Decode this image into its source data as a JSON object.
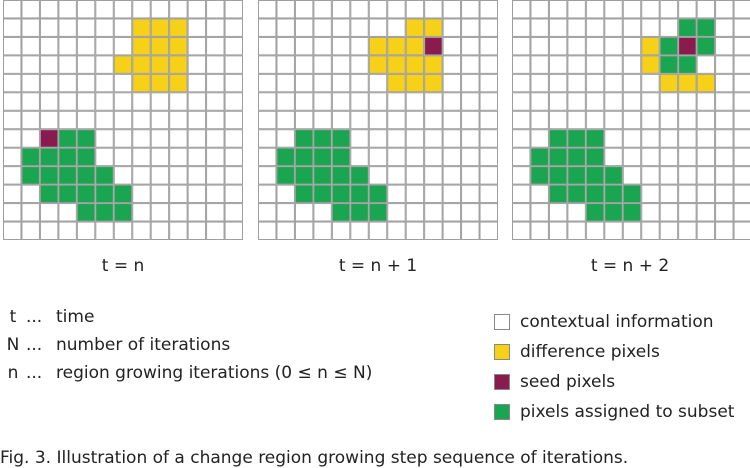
{
  "colors": {
    "empty": "#ffffff",
    "difference": "#f7d117",
    "seed": "#8a1b4f",
    "subset": "#1aa651",
    "grid_line": "#9e9e9e"
  },
  "grid": {
    "rows": 13,
    "cols": 13
  },
  "panels": [
    {
      "caption": "t = n",
      "difference": [
        [
          1,
          7
        ],
        [
          1,
          8
        ],
        [
          2,
          7
        ],
        [
          2,
          8
        ],
        [
          3,
          7
        ],
        [
          3,
          8
        ],
        [
          4,
          8
        ],
        [
          4,
          9
        ],
        [
          2,
          9
        ],
        [
          1,
          9
        ],
        [
          3,
          9
        ],
        [
          3,
          6
        ],
        [
          4,
          7
        ]
      ],
      "seed": [
        [
          7,
          2
        ]
      ],
      "subset": [
        [
          7,
          3
        ],
        [
          7,
          4
        ],
        [
          8,
          1
        ],
        [
          8,
          2
        ],
        [
          8,
          3
        ],
        [
          8,
          4
        ],
        [
          9,
          1
        ],
        [
          9,
          2
        ],
        [
          9,
          3
        ],
        [
          9,
          4
        ],
        [
          9,
          5
        ],
        [
          10,
          2
        ],
        [
          10,
          3
        ],
        [
          10,
          4
        ],
        [
          10,
          5
        ],
        [
          10,
          6
        ],
        [
          11,
          4
        ],
        [
          11,
          5
        ],
        [
          11,
          6
        ]
      ]
    },
    {
      "caption": "t = n + 1",
      "difference": [
        [
          1,
          9
        ],
        [
          2,
          7
        ],
        [
          2,
          8
        ],
        [
          3,
          7
        ],
        [
          3,
          8
        ],
        [
          3,
          9
        ],
        [
          4,
          8
        ],
        [
          4,
          9
        ],
        [
          2,
          6
        ],
        [
          3,
          6
        ],
        [
          4,
          7
        ],
        [
          1,
          8
        ]
      ],
      "seed": [
        [
          2,
          9
        ]
      ],
      "subset": [
        [
          7,
          2
        ],
        [
          7,
          3
        ],
        [
          7,
          4
        ],
        [
          8,
          1
        ],
        [
          8,
          2
        ],
        [
          8,
          3
        ],
        [
          8,
          4
        ],
        [
          9,
          1
        ],
        [
          9,
          2
        ],
        [
          9,
          3
        ],
        [
          9,
          4
        ],
        [
          9,
          5
        ],
        [
          10,
          2
        ],
        [
          10,
          3
        ],
        [
          10,
          4
        ],
        [
          10,
          5
        ],
        [
          10,
          6
        ],
        [
          11,
          4
        ],
        [
          11,
          5
        ],
        [
          11,
          6
        ]
      ]
    },
    {
      "caption": "t = n + 2",
      "difference": [
        [
          2,
          7
        ],
        [
          3,
          7
        ],
        [
          4,
          8
        ],
        [
          4,
          9
        ],
        [
          4,
          10
        ]
      ],
      "seed": [
        [
          2,
          9
        ]
      ],
      "subset": [
        [
          1,
          9
        ],
        [
          1,
          10
        ],
        [
          2,
          8
        ],
        [
          2,
          10
        ],
        [
          3,
          8
        ],
        [
          3,
          9
        ],
        [
          7,
          2
        ],
        [
          7,
          3
        ],
        [
          7,
          4
        ],
        [
          8,
          1
        ],
        [
          8,
          2
        ],
        [
          8,
          3
        ],
        [
          8,
          4
        ],
        [
          9,
          1
        ],
        [
          9,
          2
        ],
        [
          9,
          3
        ],
        [
          9,
          4
        ],
        [
          9,
          5
        ],
        [
          10,
          2
        ],
        [
          10,
          3
        ],
        [
          10,
          4
        ],
        [
          10,
          5
        ],
        [
          10,
          6
        ],
        [
          11,
          4
        ],
        [
          11,
          5
        ],
        [
          11,
          6
        ]
      ]
    }
  ],
  "definitions": [
    {
      "symbol": "t",
      "separator": "...",
      "text": "time"
    },
    {
      "symbol": "N",
      "separator": "...",
      "text": "number of iterations"
    },
    {
      "symbol": "n",
      "separator": "...",
      "text": "region growing iterations (0 ≤ n ≤ N)"
    }
  ],
  "legend": [
    {
      "label": "contextual information",
      "color": "#ffffff"
    },
    {
      "label": "difference pixels",
      "color": "#f7d117"
    },
    {
      "label": "seed pixels",
      "color": "#8a1b4f"
    },
    {
      "label": "pixels assigned to subset",
      "color": "#1aa651"
    }
  ],
  "footer": "Fig. 3. Illustration of a change region growing step sequence of iterations."
}
